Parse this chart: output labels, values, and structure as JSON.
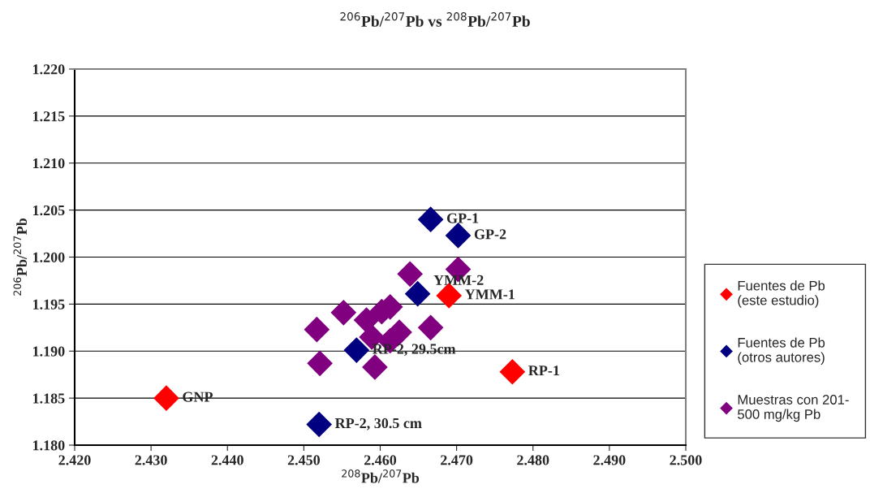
{
  "chart_data": {
    "type": "scatter",
    "title": "$^{206}$Pb/$^{207}$Pb vs $^{208}$Pb/$^{207}$Pb",
    "xlabel": "$^{208}$Pb/$^{207}$Pb",
    "ylabel": "$^{206}$Pb/$^{207}$Pb",
    "xlim": [
      2.42,
      2.5
    ],
    "xticks": [
      {
        "value": 2.42,
        "label": "2.420"
      },
      {
        "value": 2.43,
        "label": "2.430"
      },
      {
        "value": 2.44,
        "label": "2.440"
      },
      {
        "value": 2.45,
        "label": "2.450"
      },
      {
        "value": 2.46,
        "label": "2.460"
      },
      {
        "value": 2.47,
        "label": "2.470"
      },
      {
        "value": 2.48,
        "label": "2.480"
      },
      {
        "value": 2.49,
        "label": "2.490"
      },
      {
        "value": 2.5,
        "label": "2.500"
      }
    ],
    "ylim": [
      1.18,
      1.22
    ],
    "yticks": [
      {
        "value": 1.18,
        "label": "1.180"
      },
      1.185,
      {
        "value": 1.19,
        "label": "1.190"
      },
      1.195,
      {
        "value": 1.2,
        "label": "1.200"
      },
      1.205,
      {
        "value": 1.21,
        "label": "1.210"
      },
      1.215,
      {
        "value": 1.22,
        "label": "1.220"
      }
    ],
    "grid": "y",
    "legend": "right",
    "marker": "diamond",
    "series": [
      {
        "name": "Fuentes de Pb (este estudio)",
        "color": "#ff0000",
        "x": [
          2.432,
          2.469,
          2.4773
        ],
        "values": [
          1.185,
          1.1959,
          1.1878
        ]
      },
      {
        "name": "Fuentes de Pb (otros autores)",
        "color": "#000080",
        "x": [
          2.4666,
          2.4702,
          2.4649,
          2.4569,
          2.452
        ],
        "values": [
          1.204,
          1.2023,
          1.1961,
          1.1901,
          1.1822
        ]
      },
      {
        "name": "Muestras con 201-500 mg/kg Pb",
        "color": "#800080",
        "x": [
          2.4517,
          2.4552,
          2.4582,
          2.4602,
          2.4613,
          2.4639,
          2.4702,
          2.4666,
          2.4589,
          2.4625,
          2.4613,
          2.4521,
          2.4593
        ],
        "values": [
          1.1923,
          1.1941,
          1.1933,
          1.1942,
          1.1947,
          1.1982,
          1.1987,
          1.1925,
          1.1915,
          1.192,
          1.1911,
          1.1887,
          1.1883
        ]
      }
    ],
    "annotations": [
      {
        "text": "GNP",
        "x": 2.432,
        "y": 1.185
      },
      {
        "text": "YMM-1",
        "x": 2.469,
        "y": 1.1959
      },
      {
        "text": "RP-1",
        "x": 2.4773,
        "y": 1.1878
      },
      {
        "text": "GP-1",
        "x": 2.4666,
        "y": 1.204
      },
      {
        "text": "GP-2",
        "x": 2.4702,
        "y": 1.2023
      },
      {
        "text": "YMM-2",
        "x": 2.4649,
        "y": 1.1961
      },
      {
        "text": "RP-2, 29.5cm",
        "x": 2.4569,
        "y": 1.1901
      },
      {
        "text": "RP-2, 30.5 cm",
        "x": 2.452,
        "y": 1.1822
      }
    ]
  }
}
